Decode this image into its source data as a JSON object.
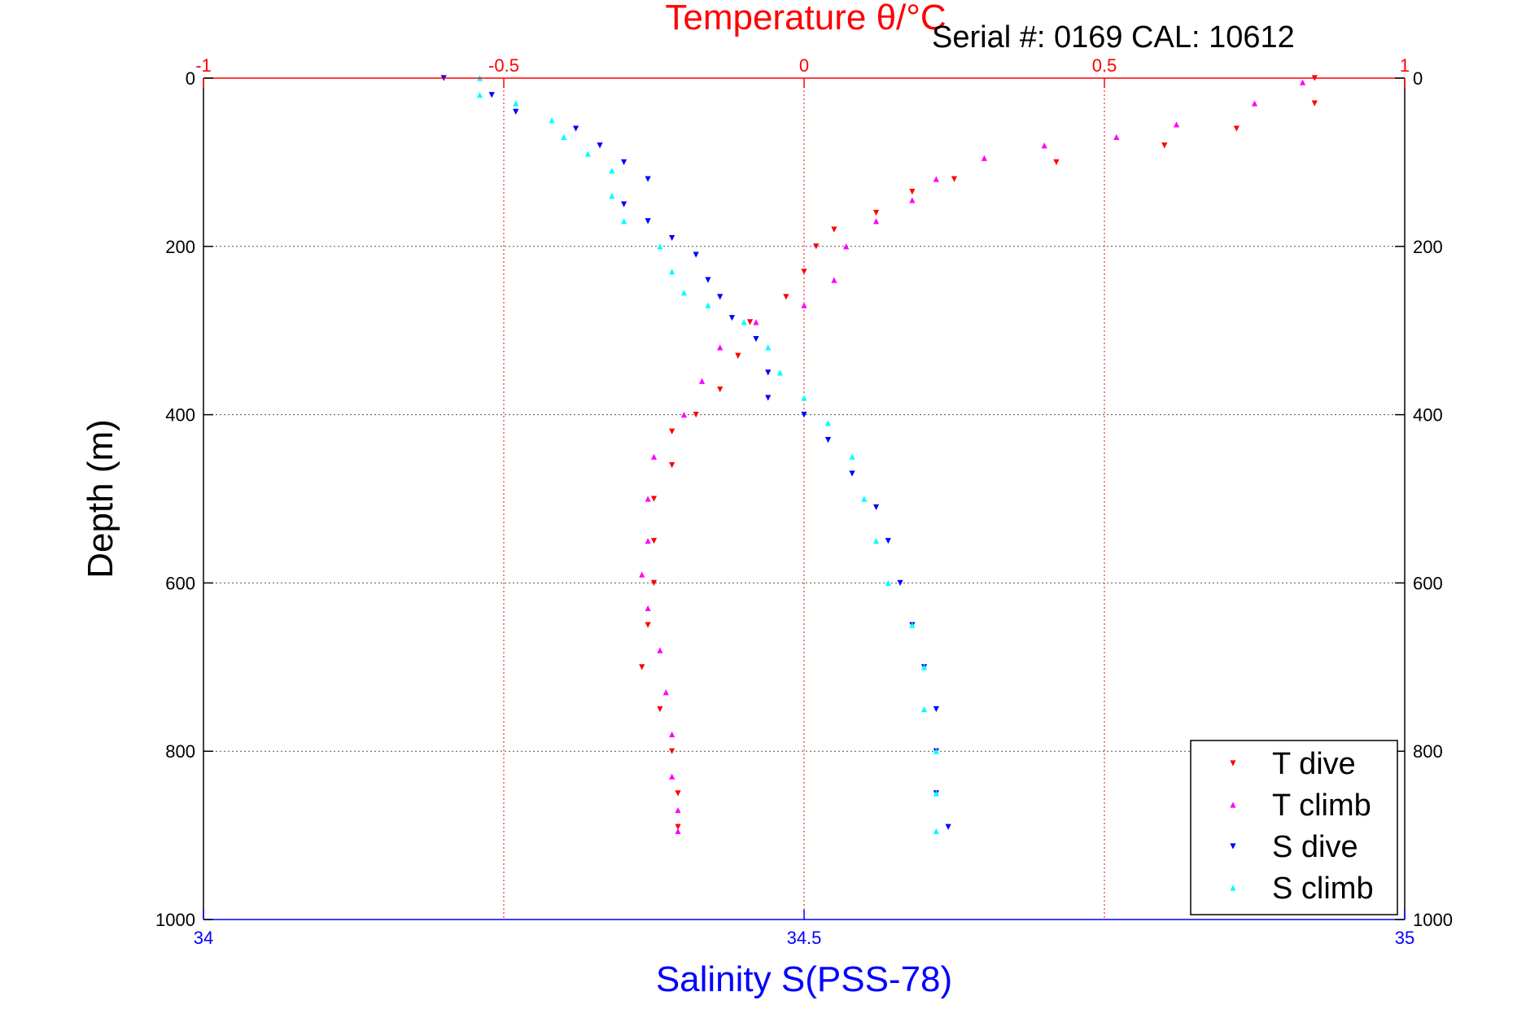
{
  "chart_data": {
    "type": "scatter",
    "title": "Temperature θ/°C",
    "subtitle": "Serial #: 0169 CAL: 10612",
    "ylabel": "Depth (m)",
    "xlabel": "Salinity S(PSS-78)",
    "grid": true,
    "legend_position": "bottom-right",
    "y_axis": {
      "range": [
        0,
        1000
      ],
      "reversed": true,
      "ticks": [
        0,
        200,
        400,
        600,
        800,
        1000
      ],
      "tick_labels": [
        "0",
        "200",
        "400",
        "600",
        "800",
        "1000"
      ]
    },
    "x_axis_bottom": {
      "quantity": "salinity",
      "range": [
        34,
        35
      ],
      "ticks": [
        34,
        34.5,
        35
      ],
      "tick_labels": [
        "34",
        "34.5",
        "35"
      ],
      "color": "#0000ff"
    },
    "x_axis_top": {
      "quantity": "temperature",
      "range": [
        -1,
        1
      ],
      "ticks": [
        -1,
        -0.5,
        0,
        0.5,
        1
      ],
      "tick_labels": [
        "-1",
        "-0.5",
        "0",
        "0.5",
        "1"
      ],
      "color": "#ff0000"
    },
    "series": [
      {
        "name": "T dive",
        "axis": "top",
        "color": "#ff0000",
        "marker": "▾",
        "points": [
          [
            0.85,
            0
          ],
          [
            0.85,
            30
          ],
          [
            0.72,
            60
          ],
          [
            0.6,
            80
          ],
          [
            0.42,
            100
          ],
          [
            0.25,
            120
          ],
          [
            0.18,
            135
          ],
          [
            0.12,
            160
          ],
          [
            0.05,
            180
          ],
          [
            0.02,
            200
          ],
          [
            0.0,
            230
          ],
          [
            -0.03,
            260
          ],
          [
            -0.09,
            290
          ],
          [
            -0.11,
            330
          ],
          [
            -0.14,
            370
          ],
          [
            -0.18,
            400
          ],
          [
            -0.22,
            420
          ],
          [
            -0.22,
            460
          ],
          [
            -0.25,
            500
          ],
          [
            -0.25,
            550
          ],
          [
            -0.25,
            600
          ],
          [
            -0.26,
            650
          ],
          [
            -0.27,
            700
          ],
          [
            -0.24,
            750
          ],
          [
            -0.22,
            800
          ],
          [
            -0.21,
            850
          ],
          [
            -0.21,
            890
          ]
        ]
      },
      {
        "name": "T climb",
        "axis": "top",
        "color": "#ff00ff",
        "marker": "▴",
        "points": [
          [
            0.83,
            5
          ],
          [
            0.75,
            30
          ],
          [
            0.62,
            55
          ],
          [
            0.52,
            70
          ],
          [
            0.4,
            80
          ],
          [
            0.3,
            95
          ],
          [
            0.22,
            120
          ],
          [
            0.18,
            145
          ],
          [
            0.12,
            170
          ],
          [
            0.07,
            200
          ],
          [
            0.05,
            240
          ],
          [
            0.0,
            270
          ],
          [
            -0.08,
            290
          ],
          [
            -0.14,
            320
          ],
          [
            -0.17,
            360
          ],
          [
            -0.2,
            400
          ],
          [
            -0.25,
            450
          ],
          [
            -0.26,
            500
          ],
          [
            -0.26,
            550
          ],
          [
            -0.27,
            590
          ],
          [
            -0.26,
            630
          ],
          [
            -0.24,
            680
          ],
          [
            -0.23,
            730
          ],
          [
            -0.22,
            780
          ],
          [
            -0.22,
            830
          ],
          [
            -0.21,
            870
          ],
          [
            -0.21,
            895
          ]
        ]
      },
      {
        "name": "S dive",
        "axis": "bottom",
        "color": "#0000ff",
        "marker": "▾",
        "points": [
          [
            34.2,
            0
          ],
          [
            34.24,
            20
          ],
          [
            34.26,
            40
          ],
          [
            34.31,
            60
          ],
          [
            34.33,
            80
          ],
          [
            34.35,
            100
          ],
          [
            34.37,
            120
          ],
          [
            34.35,
            150
          ],
          [
            34.37,
            170
          ],
          [
            34.39,
            190
          ],
          [
            34.41,
            210
          ],
          [
            34.42,
            240
          ],
          [
            34.43,
            260
          ],
          [
            34.44,
            285
          ],
          [
            34.46,
            310
          ],
          [
            34.47,
            350
          ],
          [
            34.47,
            380
          ],
          [
            34.5,
            400
          ],
          [
            34.52,
            430
          ],
          [
            34.54,
            470
          ],
          [
            34.56,
            510
          ],
          [
            34.57,
            550
          ],
          [
            34.58,
            600
          ],
          [
            34.59,
            650
          ],
          [
            34.6,
            700
          ],
          [
            34.61,
            750
          ],
          [
            34.61,
            800
          ],
          [
            34.61,
            850
          ],
          [
            34.62,
            890
          ]
        ]
      },
      {
        "name": "S climb",
        "axis": "bottom",
        "color": "#00ffff",
        "marker": "▴",
        "points": [
          [
            34.23,
            0
          ],
          [
            34.23,
            20
          ],
          [
            34.26,
            30
          ],
          [
            34.29,
            50
          ],
          [
            34.3,
            70
          ],
          [
            34.32,
            90
          ],
          [
            34.34,
            110
          ],
          [
            34.34,
            140
          ],
          [
            34.35,
            170
          ],
          [
            34.38,
            200
          ],
          [
            34.39,
            230
          ],
          [
            34.4,
            255
          ],
          [
            34.42,
            270
          ],
          [
            34.45,
            290
          ],
          [
            34.47,
            320
          ],
          [
            34.48,
            350
          ],
          [
            34.5,
            380
          ],
          [
            34.52,
            410
          ],
          [
            34.54,
            450
          ],
          [
            34.55,
            500
          ],
          [
            34.56,
            550
          ],
          [
            34.57,
            600
          ],
          [
            34.59,
            650
          ],
          [
            34.6,
            700
          ],
          [
            34.6,
            750
          ],
          [
            34.61,
            800
          ],
          [
            34.61,
            850
          ],
          [
            34.61,
            895
          ]
        ]
      }
    ]
  }
}
